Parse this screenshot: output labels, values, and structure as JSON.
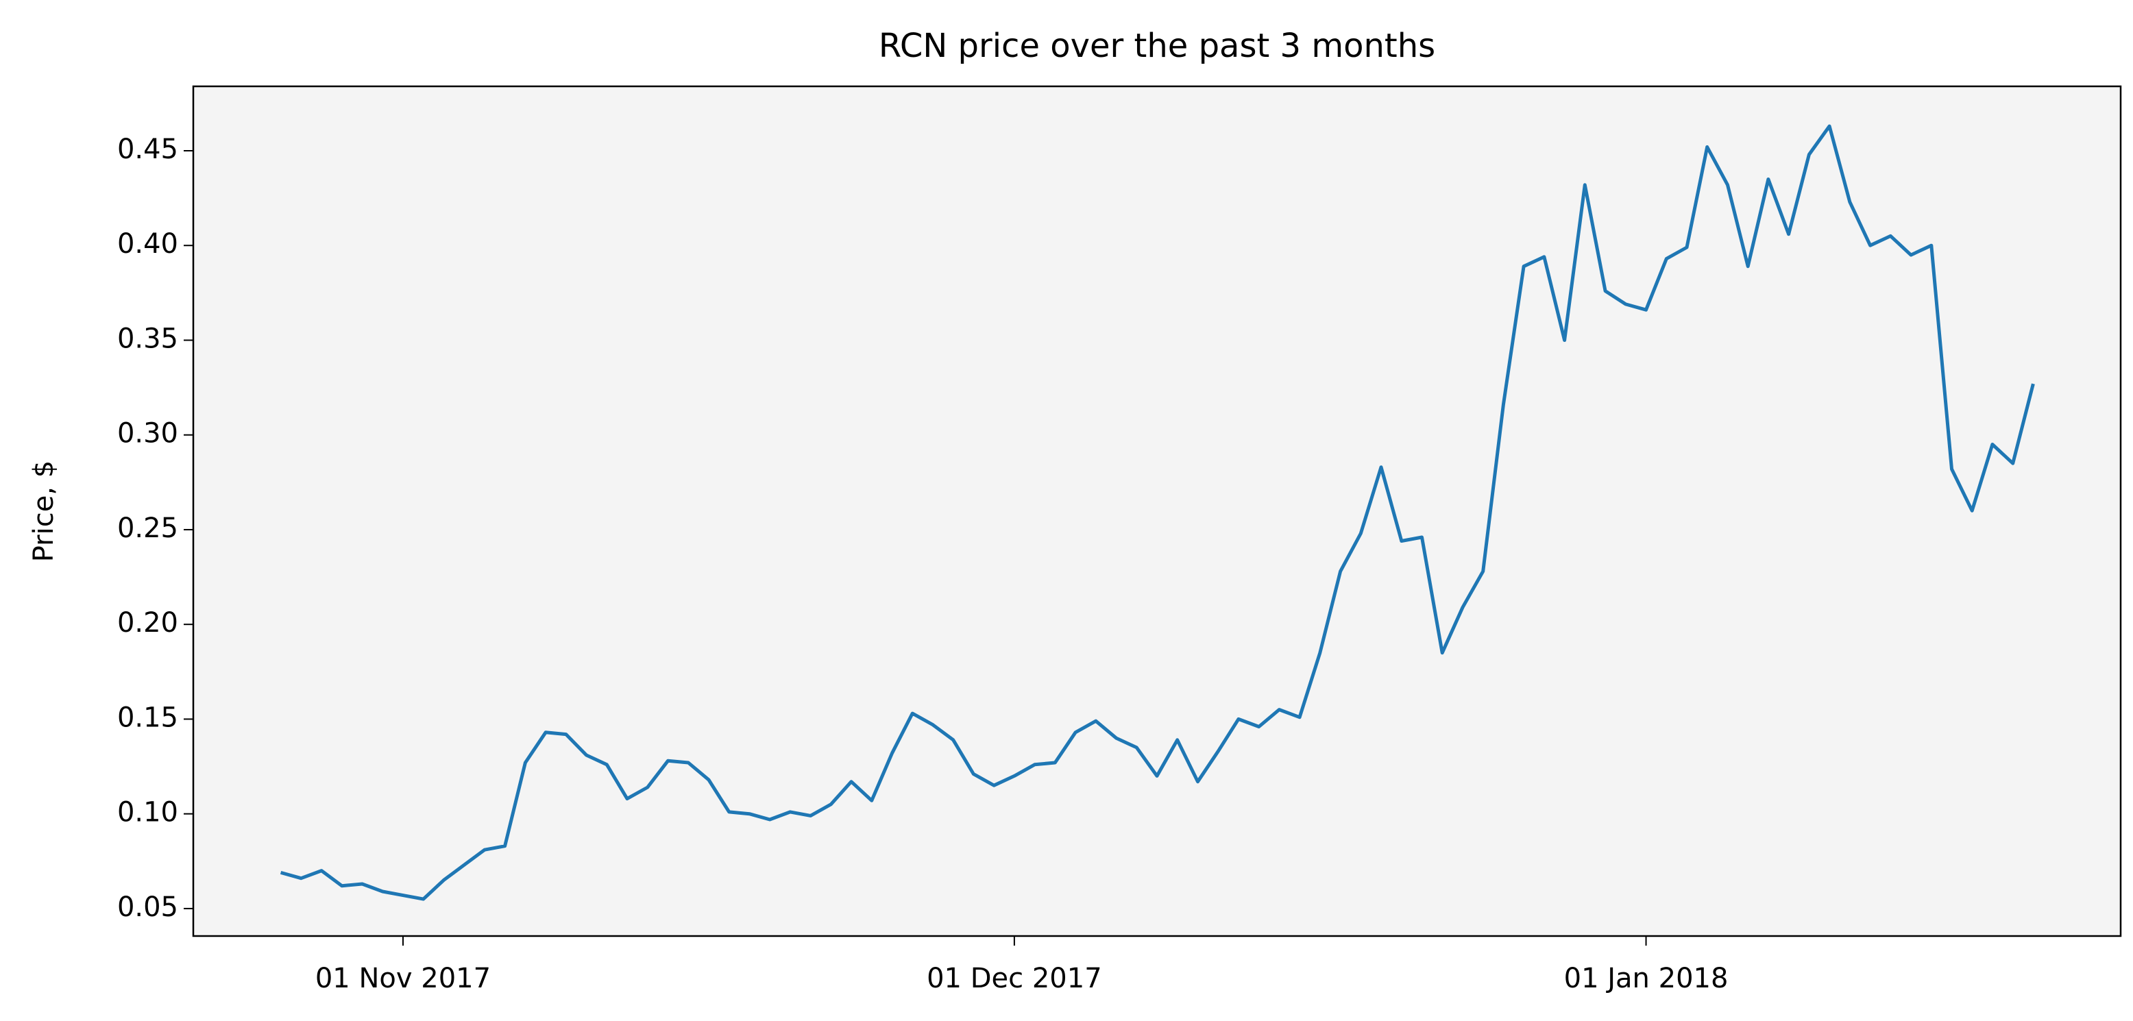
{
  "chart_data": {
    "type": "line",
    "title": "RCN price over the past 3 months",
    "ylabel": "Price, $",
    "color": "#1f77b4",
    "background": "#f4f4f4",
    "x": [
      "2017-10-26",
      "2017-10-27",
      "2017-10-28",
      "2017-10-29",
      "2017-10-30",
      "2017-10-31",
      "2017-11-01",
      "2017-11-02",
      "2017-11-03",
      "2017-11-04",
      "2017-11-05",
      "2017-11-06",
      "2017-11-07",
      "2017-11-08",
      "2017-11-09",
      "2017-11-10",
      "2017-11-11",
      "2017-11-12",
      "2017-11-13",
      "2017-11-14",
      "2017-11-15",
      "2017-11-16",
      "2017-11-17",
      "2017-11-18",
      "2017-11-19",
      "2017-11-20",
      "2017-11-21",
      "2017-11-22",
      "2017-11-23",
      "2017-11-24",
      "2017-11-25",
      "2017-11-26",
      "2017-11-27",
      "2017-11-28",
      "2017-11-29",
      "2017-11-30",
      "2017-12-01",
      "2017-12-02",
      "2017-12-03",
      "2017-12-04",
      "2017-12-05",
      "2017-12-06",
      "2017-12-07",
      "2017-12-08",
      "2017-12-09",
      "2017-12-10",
      "2017-12-11",
      "2017-12-12",
      "2017-12-13",
      "2017-12-14",
      "2017-12-15",
      "2017-12-16",
      "2017-12-17",
      "2017-12-18",
      "2017-12-19",
      "2017-12-20",
      "2017-12-21",
      "2017-12-22",
      "2017-12-23",
      "2017-12-24",
      "2017-12-25",
      "2017-12-26",
      "2017-12-27",
      "2017-12-28",
      "2017-12-29",
      "2017-12-30",
      "2017-12-31",
      "2018-01-01",
      "2018-01-02",
      "2018-01-03",
      "2018-01-04",
      "2018-01-05",
      "2018-01-06",
      "2018-01-07",
      "2018-01-08",
      "2018-01-09",
      "2018-01-10",
      "2018-01-11",
      "2018-01-12",
      "2018-01-13",
      "2018-01-14",
      "2018-01-15",
      "2018-01-16",
      "2018-01-17",
      "2018-01-18",
      "2018-01-19",
      "2018-01-20"
    ],
    "values": [
      0.069,
      0.066,
      0.07,
      0.062,
      0.063,
      0.059,
      0.057,
      0.055,
      0.065,
      0.073,
      0.081,
      0.083,
      0.127,
      0.143,
      0.142,
      0.131,
      0.126,
      0.108,
      0.114,
      0.128,
      0.127,
      0.118,
      0.101,
      0.1,
      0.097,
      0.101,
      0.099,
      0.105,
      0.117,
      0.107,
      0.132,
      0.153,
      0.147,
      0.139,
      0.121,
      0.115,
      0.12,
      0.126,
      0.127,
      0.143,
      0.149,
      0.14,
      0.135,
      0.12,
      0.139,
      0.117,
      0.133,
      0.15,
      0.146,
      0.155,
      0.151,
      0.185,
      0.228,
      0.248,
      0.283,
      0.244,
      0.246,
      0.185,
      0.209,
      0.228,
      0.316,
      0.389,
      0.394,
      0.35,
      0.432,
      0.376,
      0.369,
      0.366,
      0.393,
      0.399,
      0.452,
      0.432,
      0.389,
      0.435,
      0.406,
      0.448,
      0.463,
      0.423,
      0.4,
      0.405,
      0.395,
      0.4,
      0.282,
      0.26,
      0.295,
      0.285,
      0.327
    ],
    "xlim": [
      "2017-10-21T17:00:00Z",
      "2018-01-24T07:00:00Z"
    ],
    "xticks": [
      {
        "value": "2017-11-01",
        "label": "01 Nov 2017"
      },
      {
        "value": "2017-12-01",
        "label": "01 Dec 2017"
      },
      {
        "value": "2018-01-01",
        "label": "01 Jan 2018"
      }
    ],
    "ylim": [
      0.0355,
      0.484
    ],
    "yticks": [
      0.05,
      {
        "value": 0.1,
        "label": "0.10"
      },
      0.15,
      {
        "value": 0.2,
        "label": "0.20"
      },
      0.25,
      {
        "value": 0.3,
        "label": "0.30"
      },
      0.35,
      {
        "value": 0.4,
        "label": "0.40"
      },
      0.45
    ]
  }
}
